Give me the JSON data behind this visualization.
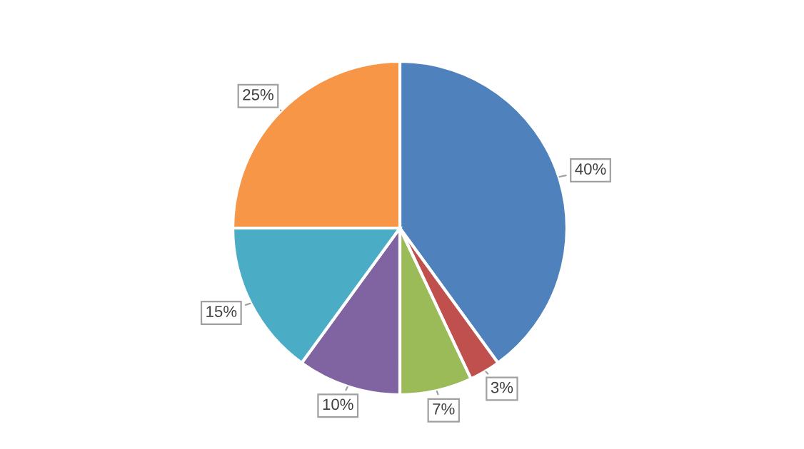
{
  "chart_data": {
    "type": "pie",
    "categories": [
      null,
      null,
      null,
      null,
      null,
      null
    ],
    "values": [
      40,
      3,
      7,
      10,
      15,
      25
    ],
    "colors": [
      "#4f81bd",
      "#c0504d",
      "#9bbb59",
      "#8064a2",
      "#4bacc6",
      "#f79646"
    ],
    "value_labels": [
      "40%",
      "3%",
      "7%",
      "10%",
      "15%",
      "25%"
    ],
    "legend": false
  }
}
